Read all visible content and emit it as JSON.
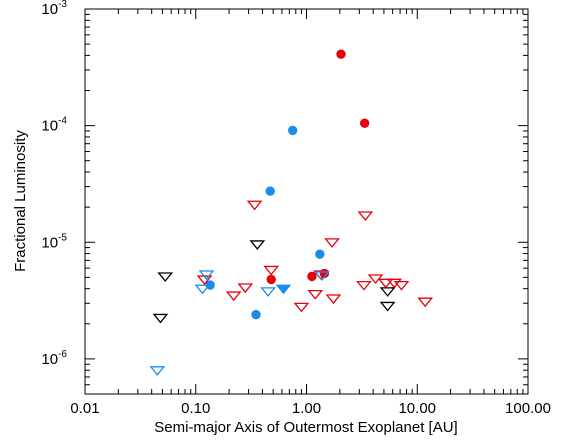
{
  "chart_data": {
    "type": "scatter",
    "title": "",
    "xlabel": "Semi-major Axis of Outermost Exoplanet [AU]",
    "ylabel": "Fractional Luminosity",
    "xscale": "log",
    "yscale": "log",
    "xlim": [
      0.01,
      100
    ],
    "ylim": [
      5e-07,
      0.001
    ],
    "grid": false,
    "legend": "none",
    "x_ticks": [
      {
        "value": 0.01,
        "label": "0.01"
      },
      {
        "value": 0.1,
        "label": "0.10"
      },
      {
        "value": 1,
        "label": "1.00"
      },
      {
        "value": 10,
        "label": "10.00"
      },
      {
        "value": 100,
        "label": "100.00"
      }
    ],
    "y_ticks": [
      {
        "value": 1e-06,
        "base": "10",
        "exp": "-6"
      },
      {
        "value": 1e-05,
        "base": "10",
        "exp": "-5"
      },
      {
        "value": 0.0001,
        "base": "10",
        "exp": "-4"
      },
      {
        "value": 0.001,
        "base": "10",
        "exp": "-3"
      }
    ],
    "series": [
      {
        "marker": "circle-filled",
        "color": "#e8000b",
        "points": [
          [
            2.05,
            0.00041
          ],
          [
            3.35,
            0.000105
          ],
          [
            0.48,
            4.8e-06
          ],
          [
            1.12,
            5.1e-06
          ],
          [
            1.45,
            5.4e-06
          ]
        ]
      },
      {
        "marker": "circle-filled",
        "color": "#1a8ceb",
        "points": [
          [
            0.75,
            9.1e-05
          ],
          [
            0.47,
            2.75e-05
          ],
          [
            1.32,
            7.9e-06
          ],
          [
            0.135,
            4.3e-06
          ],
          [
            0.35,
            2.4e-06
          ]
        ]
      },
      {
        "marker": "triangle-down-open",
        "color": "#e8000b",
        "points": [
          [
            0.34,
            2.1e-05
          ],
          [
            3.4,
            1.7e-05
          ],
          [
            1.7,
            1e-05
          ],
          [
            0.48,
            5.8e-06
          ],
          [
            0.12,
            4.8e-06
          ],
          [
            0.28,
            4.1e-06
          ],
          [
            0.22,
            3.5e-06
          ],
          [
            1.2,
            3.6e-06
          ],
          [
            0.9,
            2.8e-06
          ],
          [
            1.75,
            3.3e-06
          ],
          [
            3.3,
            4.3e-06
          ],
          [
            4.2,
            4.9e-06
          ],
          [
            5.2,
            4.5e-06
          ],
          [
            6.2,
            4.5e-06
          ],
          [
            7.2,
            4.3e-06
          ],
          [
            11.8,
            3.1e-06
          ],
          [
            1.35,
            5.3e-06
          ]
        ]
      },
      {
        "marker": "triangle-down-open",
        "color": "#1a8ceb",
        "points": [
          [
            0.045,
            8e-07
          ],
          [
            0.115,
            4e-06
          ],
          [
            0.125,
            5.3e-06
          ],
          [
            0.45,
            3.8e-06
          ],
          [
            1.38,
            5.2e-06
          ]
        ]
      },
      {
        "marker": "triangle-down-filled",
        "color": "#1a8ceb",
        "points": [
          [
            0.62,
            4e-06
          ]
        ]
      },
      {
        "marker": "triangle-down-open",
        "color": "#000000",
        "points": [
          [
            0.36,
            9.6e-06
          ],
          [
            0.053,
            5.1e-06
          ],
          [
            0.048,
            2.25e-06
          ],
          [
            5.4,
            3.8e-06
          ],
          [
            5.4,
            2.85e-06
          ]
        ]
      }
    ]
  }
}
